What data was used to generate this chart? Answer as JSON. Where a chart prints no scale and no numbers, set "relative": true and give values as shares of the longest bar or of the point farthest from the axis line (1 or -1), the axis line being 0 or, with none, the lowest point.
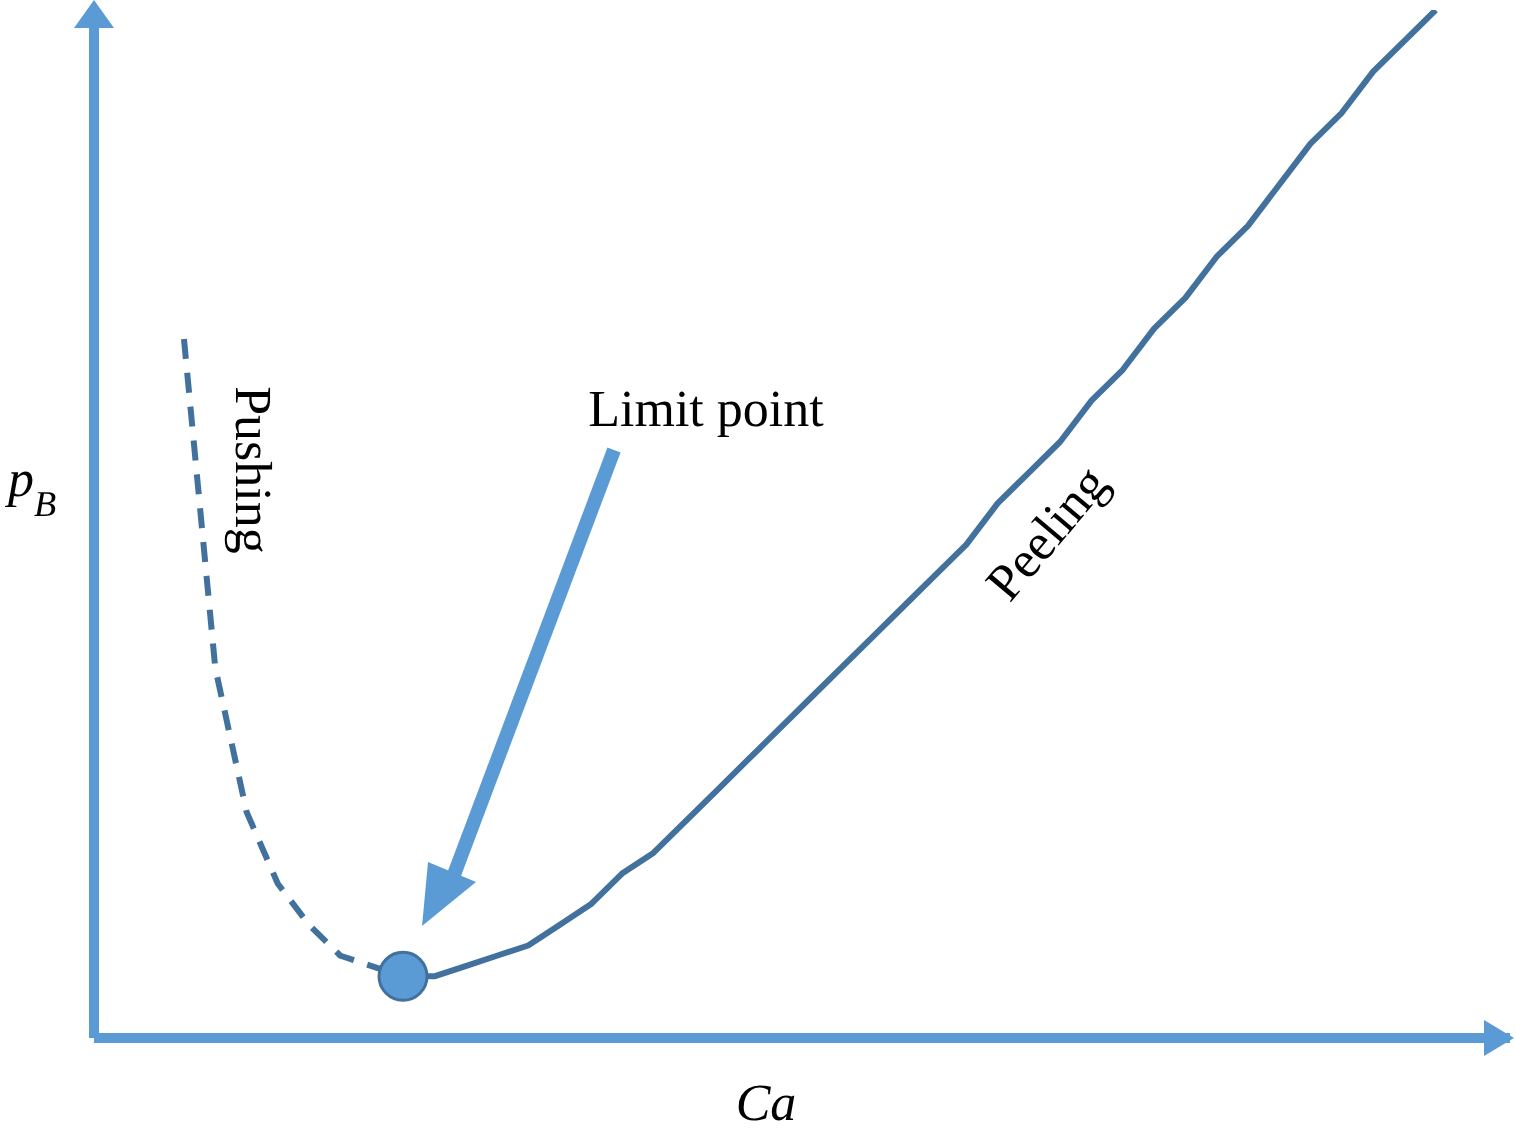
{
  "chart_data": {
    "type": "line",
    "relative": true,
    "xlabel": "Ca",
    "ylabel": "p$_{B}$",
    "annotations": [
      "Limit point"
    ],
    "grid": false,
    "legend": false,
    "categories": [
      null,
      null,
      null,
      null,
      null,
      null,
      null,
      null,
      null,
      null,
      null,
      null,
      null,
      null,
      null,
      null,
      null,
      null,
      null,
      null,
      null,
      null,
      null,
      null,
      null,
      null,
      null,
      null,
      null,
      null,
      null,
      null,
      null,
      null,
      null,
      null,
      null,
      null,
      null,
      null,
      null
    ],
    "series": [
      {
        "name": "Pushing",
        "color": "#41719c",
        "line_style": "dashed",
        "values": [
          0.68,
          0.36,
          0.22,
          0.15,
          0.11,
          0.08,
          0.07,
          0.06,
          null,
          null,
          null,
          null,
          null,
          null,
          null,
          null,
          null,
          null,
          null,
          null,
          null,
          null,
          null,
          null,
          null,
          null,
          null,
          null,
          null,
          null,
          null,
          null,
          null,
          null,
          null,
          null,
          null,
          null,
          null,
          null,
          null
        ]
      },
      {
        "name": "Peeling",
        "color": "#41719c",
        "line_style": "solid",
        "values": [
          null,
          null,
          null,
          null,
          null,
          null,
          null,
          0.06,
          0.06,
          0.07,
          0.08,
          0.09,
          0.11,
          0.13,
          0.16,
          0.18,
          0.21,
          0.24,
          0.27,
          0.3,
          0.33,
          0.36,
          0.39,
          0.42,
          0.45,
          0.48,
          0.52,
          0.55,
          0.58,
          0.62,
          0.65,
          0.69,
          0.72,
          0.76,
          0.79,
          0.83,
          0.87,
          0.9,
          0.94,
          0.97,
          1.0
        ]
      }
    ]
  }
}
